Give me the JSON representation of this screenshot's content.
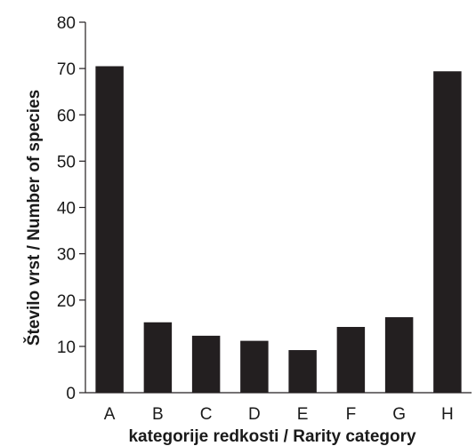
{
  "chart_data": {
    "type": "bar",
    "title": "",
    "xlabel": "kategorije redkosti / Rarity category",
    "ylabel": "Število vrst / Number of species",
    "categories": [
      "A",
      "B",
      "C",
      "D",
      "E",
      "F",
      "G",
      "H"
    ],
    "values": [
      70.5,
      15.2,
      12.3,
      11.2,
      9.2,
      14.2,
      16.3,
      69.4
    ],
    "ylim": [
      0,
      80
    ],
    "yticks": [
      "0",
      "10",
      "20",
      "30",
      "40",
      "50",
      "60",
      "70",
      "80"
    ],
    "grid": false,
    "bar_color": "#231f20",
    "axis_color": "#231f20"
  }
}
